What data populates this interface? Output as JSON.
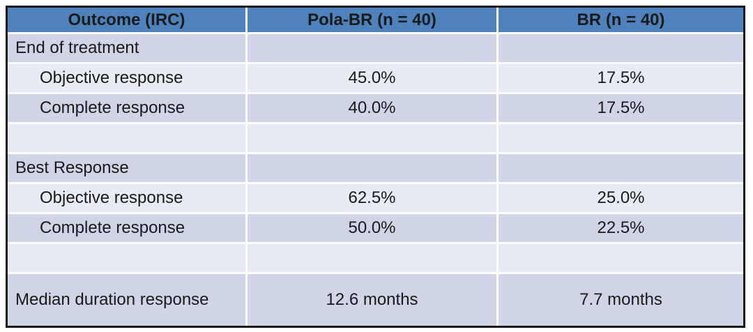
{
  "table": {
    "headers": [
      "Outcome (IRC)",
      "Pola-BR (n = 40)",
      "BR (n = 40)"
    ],
    "rows": [
      {
        "label": "End of treatment",
        "pola_br": "",
        "br": ""
      },
      {
        "label": "Objective response",
        "pola_br": "45.0%",
        "br": "17.5%"
      },
      {
        "label": "Complete response",
        "pola_br": "40.0%",
        "br": "17.5%"
      },
      {
        "label": "",
        "pola_br": "",
        "br": ""
      },
      {
        "label": "Best Response",
        "pola_br": "",
        "br": ""
      },
      {
        "label": "Objective response",
        "pola_br": "62.5%",
        "br": "25.0%"
      },
      {
        "label": "Complete response",
        "pola_br": "50.0%",
        "br": "22.5%"
      },
      {
        "label": "",
        "pola_br": "",
        "br": ""
      },
      {
        "label": "Median duration response",
        "pola_br": "12.6 months",
        "br": "7.7 months"
      }
    ],
    "colors": {
      "header_bg": "#4f81bd",
      "band_dark": "#cfd4e6",
      "band_light": "#e9ebf4",
      "gridline": "#ffffff",
      "outer_border": "#161616",
      "text": "#1a1a1a"
    }
  }
}
